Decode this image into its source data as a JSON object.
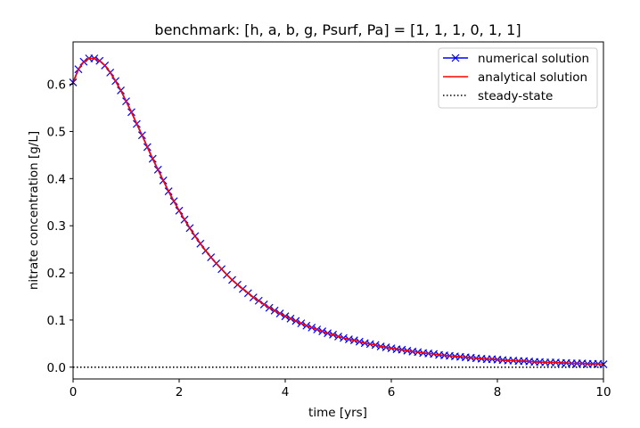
{
  "chart_data": {
    "type": "line",
    "title": "benchmark: [h, a, b, g, Psurf, Pa] = [1, 1, 1, 0, 1, 1]",
    "xlabel": "time [yrs]",
    "ylabel": "nitrate concentration [g/L]",
    "xlim": [
      0,
      10
    ],
    "ylim": [
      -0.025,
      0.69
    ],
    "xticks": [
      0,
      2,
      4,
      6,
      8,
      10
    ],
    "xtick_labels": [
      "0",
      "2",
      "4",
      "6",
      "8",
      "10"
    ],
    "yticks": [
      0.0,
      0.1,
      0.2,
      0.3,
      0.4,
      0.5,
      0.6
    ],
    "ytick_labels": [
      "0.0",
      "0.1",
      "0.2",
      "0.3",
      "0.4",
      "0.5",
      "0.6"
    ],
    "grid": false,
    "legend_position": "top-right",
    "series": [
      {
        "name": "numerical solution",
        "color": "#0000ff",
        "marker": "x",
        "line_style": "solid",
        "x": [
          0.0,
          0.1,
          0.2,
          0.3,
          0.4,
          0.5,
          0.6,
          0.7,
          0.8,
          0.9,
          1.0,
          1.1,
          1.2,
          1.3,
          1.4,
          1.5,
          1.6,
          1.7,
          1.8,
          1.9,
          2.0,
          2.1,
          2.2,
          2.3,
          2.4,
          2.5,
          2.6,
          2.7,
          2.8,
          2.9,
          3.0,
          3.1,
          3.2,
          3.3,
          3.4,
          3.5,
          3.6,
          3.7,
          3.8,
          3.9,
          4.0,
          4.1,
          4.2,
          4.3,
          4.4,
          4.5,
          4.6,
          4.7,
          4.8,
          4.9,
          5.0,
          5.1,
          5.2,
          5.3,
          5.4,
          5.5,
          5.6,
          5.7,
          5.8,
          5.9,
          6.0,
          6.1,
          6.2,
          6.3,
          6.4,
          6.5,
          6.6,
          6.7,
          6.8,
          6.9,
          7.0,
          7.1,
          7.2,
          7.3,
          7.4,
          7.5,
          7.6,
          7.7,
          7.8,
          7.9,
          8.0,
          8.1,
          8.2,
          8.3,
          8.4,
          8.5,
          8.6,
          8.7,
          8.8,
          8.9,
          9.0,
          9.1,
          9.2,
          9.3,
          9.4,
          9.5,
          9.6,
          9.7,
          9.8,
          9.9,
          10.0
        ],
        "y": [
          0.604,
          0.632,
          0.648,
          0.655,
          0.655,
          0.65,
          0.64,
          0.625,
          0.607,
          0.587,
          0.564,
          0.541,
          0.516,
          0.492,
          0.467,
          0.442,
          0.419,
          0.396,
          0.373,
          0.352,
          0.332,
          0.313,
          0.295,
          0.278,
          0.262,
          0.247,
          0.233,
          0.22,
          0.208,
          0.196,
          0.185,
          0.175,
          0.166,
          0.157,
          0.148,
          0.141,
          0.133,
          0.126,
          0.12,
          0.114,
          0.108,
          0.103,
          0.098,
          0.093,
          0.088,
          0.084,
          0.08,
          0.076,
          0.072,
          0.069,
          0.065,
          0.062,
          0.059,
          0.057,
          0.054,
          0.051,
          0.049,
          0.047,
          0.044,
          0.042,
          0.04,
          0.038,
          0.037,
          0.035,
          0.033,
          0.032,
          0.03,
          0.029,
          0.028,
          0.026,
          0.025,
          0.024,
          0.023,
          0.022,
          0.021,
          0.02,
          0.019,
          0.018,
          0.017,
          0.017,
          0.016,
          0.015,
          0.014,
          0.014,
          0.013,
          0.013,
          0.012,
          0.011,
          0.011,
          0.01,
          0.01,
          0.01,
          0.009,
          0.009,
          0.008,
          0.008,
          0.008,
          0.007,
          0.007,
          0.007,
          0.006
        ]
      },
      {
        "name": "analytical solution",
        "color": "#ff0000",
        "marker": "none",
        "line_style": "solid",
        "x": [
          0.0,
          0.1,
          0.2,
          0.3,
          0.4,
          0.5,
          0.6,
          0.7,
          0.8,
          0.9,
          1.0,
          1.1,
          1.2,
          1.3,
          1.4,
          1.5,
          1.6,
          1.7,
          1.8,
          1.9,
          2.0,
          2.1,
          2.2,
          2.3,
          2.4,
          2.5,
          2.6,
          2.7,
          2.8,
          2.9,
          3.0,
          3.1,
          3.2,
          3.3,
          3.4,
          3.5,
          3.6,
          3.7,
          3.8,
          3.9,
          4.0,
          4.1,
          4.2,
          4.3,
          4.4,
          4.5,
          4.6,
          4.7,
          4.8,
          4.9,
          5.0,
          5.1,
          5.2,
          5.3,
          5.4,
          5.5,
          5.6,
          5.7,
          5.8,
          5.9,
          6.0,
          6.1,
          6.2,
          6.3,
          6.4,
          6.5,
          6.6,
          6.7,
          6.8,
          6.9,
          7.0,
          7.1,
          7.2,
          7.3,
          7.4,
          7.5,
          7.6,
          7.7,
          7.8,
          7.9,
          8.0,
          8.1,
          8.2,
          8.3,
          8.4,
          8.5,
          8.6,
          8.7,
          8.8,
          8.9,
          9.0,
          9.1,
          9.2,
          9.3,
          9.4,
          9.5,
          9.6,
          9.7,
          9.8,
          9.9,
          10.0
        ],
        "y": [
          0.604,
          0.632,
          0.648,
          0.655,
          0.655,
          0.65,
          0.64,
          0.625,
          0.607,
          0.587,
          0.564,
          0.541,
          0.516,
          0.492,
          0.467,
          0.442,
          0.419,
          0.396,
          0.373,
          0.352,
          0.332,
          0.313,
          0.295,
          0.278,
          0.262,
          0.247,
          0.233,
          0.22,
          0.208,
          0.196,
          0.185,
          0.175,
          0.166,
          0.157,
          0.148,
          0.141,
          0.133,
          0.126,
          0.12,
          0.114,
          0.108,
          0.103,
          0.098,
          0.093,
          0.088,
          0.084,
          0.08,
          0.076,
          0.072,
          0.069,
          0.065,
          0.062,
          0.059,
          0.057,
          0.054,
          0.051,
          0.049,
          0.047,
          0.044,
          0.042,
          0.04,
          0.038,
          0.037,
          0.035,
          0.033,
          0.032,
          0.03,
          0.029,
          0.028,
          0.026,
          0.025,
          0.024,
          0.023,
          0.022,
          0.021,
          0.02,
          0.019,
          0.018,
          0.017,
          0.017,
          0.016,
          0.015,
          0.014,
          0.014,
          0.013,
          0.013,
          0.012,
          0.011,
          0.011,
          0.01,
          0.01,
          0.01,
          0.009,
          0.009,
          0.008,
          0.008,
          0.008,
          0.007,
          0.007,
          0.007,
          0.006
        ]
      },
      {
        "name": "steady-state",
        "color": "#000000",
        "marker": "none",
        "line_style": "dotted",
        "x": [
          0,
          10
        ],
        "y": [
          0.0,
          0.0
        ]
      }
    ]
  }
}
